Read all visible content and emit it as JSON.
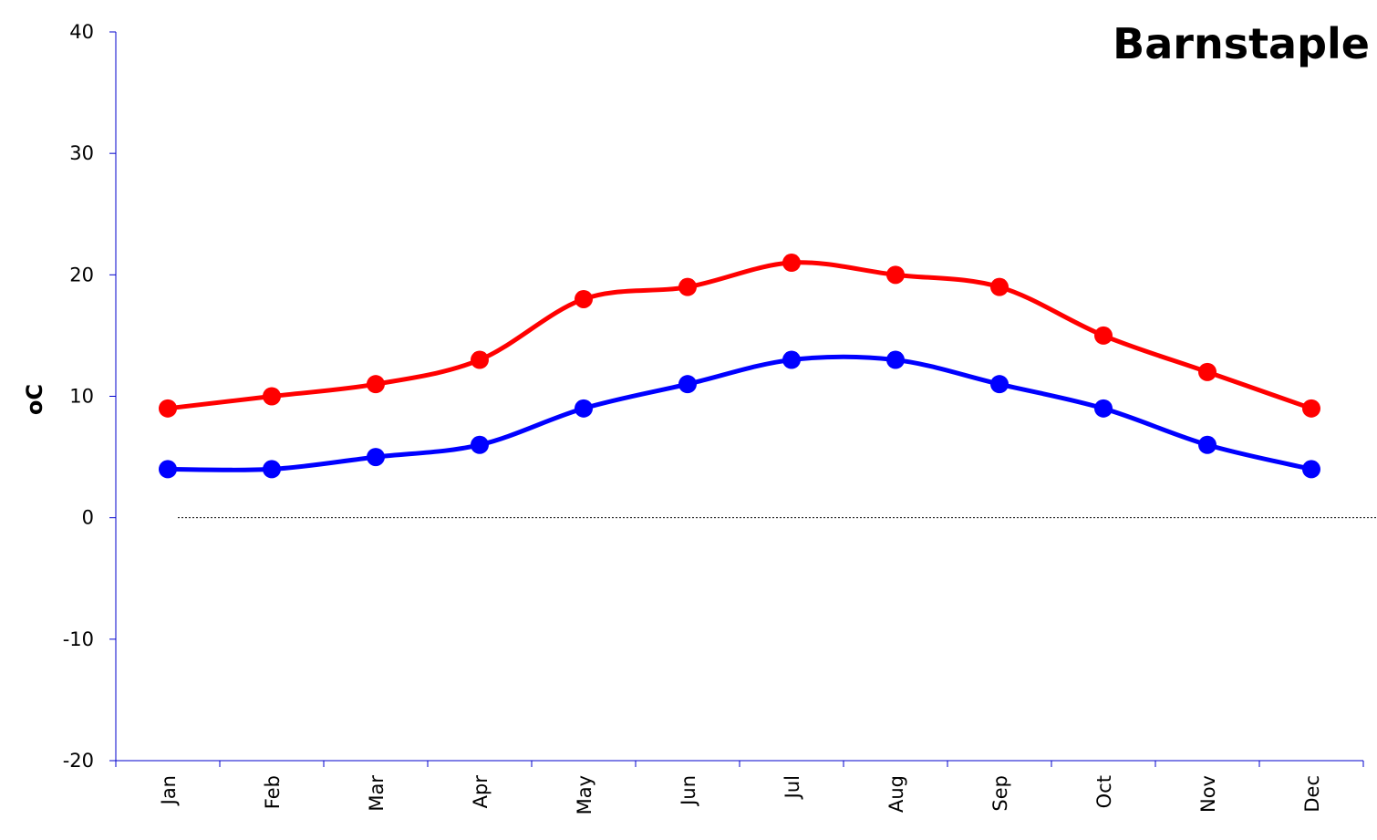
{
  "chart_data": {
    "type": "line",
    "title": "Barnstaple",
    "ylabel": "oC",
    "xlabel": "",
    "categories": [
      "Jan",
      "Feb",
      "Mar",
      "Apr",
      "May",
      "Jun",
      "Jul",
      "Aug",
      "Sep",
      "Oct",
      "Nov",
      "Dec"
    ],
    "ylim": [
      -20,
      40
    ],
    "yticks": [
      -20,
      -10,
      0,
      10,
      20,
      30,
      40
    ],
    "grid": false,
    "zero_line": "dotted",
    "smooth": true,
    "series": [
      {
        "values": [
          9,
          10,
          11,
          13,
          18,
          19,
          21,
          20,
          19,
          15,
          12,
          9
        ],
        "color": "#ff0000"
      },
      {
        "values": [
          4,
          4,
          5,
          6,
          9,
          11,
          13,
          13,
          11,
          9,
          6,
          4
        ],
        "color": "#0000ff"
      }
    ]
  }
}
